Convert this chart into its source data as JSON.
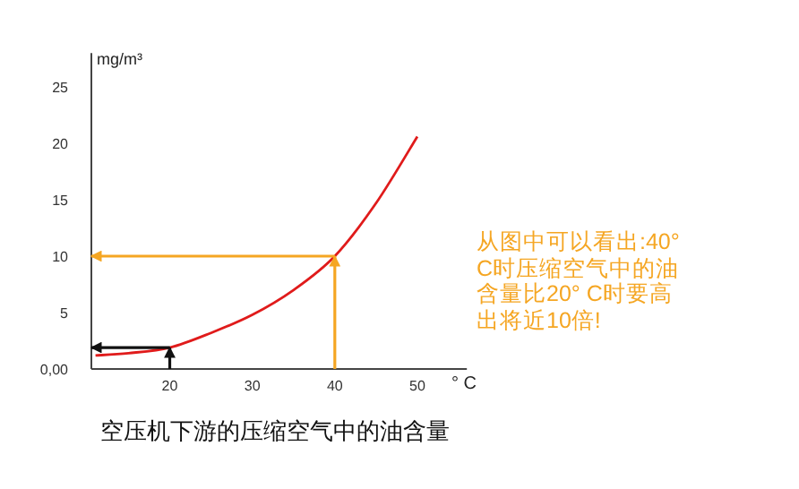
{
  "chart_data": {
    "type": "line",
    "title": "空压机下游的压缩空气中的油含量",
    "xlabel": "° C",
    "ylabel": "mg/m³",
    "annotations": [
      "从图中可以看出:40° C时压缩空气中的油含量比20° C时要高出将近10倍!"
    ],
    "xlim": [
      10.5,
      56
    ],
    "ylim": [
      0,
      28
    ],
    "xticks": [
      20,
      30,
      40,
      50
    ],
    "yticks": [
      {
        "value": 0,
        "label": "0,00"
      },
      5,
      10,
      15,
      20,
      25
    ],
    "grid": false,
    "marker": "none",
    "series": [
      {
        "color": "#e01b1b",
        "x": [
          11,
          15,
          20,
          25,
          30,
          35,
          40,
          45,
          50
        ],
        "values": [
          1.2,
          1.4,
          1.9,
          3.2,
          4.8,
          7.0,
          10,
          14.7,
          20.6
        ]
      },
      {
        "color": "#f5a623",
        "x": [
          40,
          10.5
        ],
        "values": [
          10,
          10
        ]
      },
      {
        "color": "#f5a623",
        "x": [
          40,
          40
        ],
        "values": [
          0,
          10
        ]
      },
      {
        "color": "#111111",
        "x": [
          20,
          10.5
        ],
        "values": [
          1.9,
          1.9
        ]
      },
      {
        "color": "#111111",
        "x": [
          20,
          20
        ],
        "values": [
          0,
          1.9
        ]
      }
    ]
  }
}
